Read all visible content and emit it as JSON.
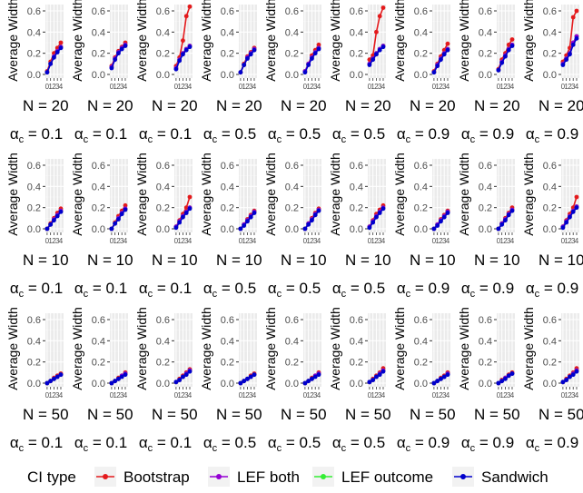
{
  "chart_data": {
    "type": "line",
    "description_layout": "3 rows x 9 facet panels",
    "ylabel": "Average Width",
    "y_ticks": [
      "0.0",
      "0.2",
      "0.4",
      "0.6"
    ],
    "x_ticks": [
      "0",
      "1",
      "2",
      "3",
      "4"
    ],
    "ylim": [
      0,
      0.68
    ],
    "xlim": [
      -0.5,
      4.8
    ],
    "legend_title": "CI type",
    "legend": [
      {
        "name": "Bootstrap",
        "color": "#e41a1c"
      },
      {
        "name": "LEF both",
        "color": "#9400d3"
      },
      {
        "name": "LEF outcome",
        "color": "#33ee33"
      },
      {
        "name": "Sandwich",
        "color": "#0000cc"
      }
    ],
    "alpha_symbol": "α",
    "alpha_sub": "c",
    "alpha_values": [
      "0.1",
      "0.1",
      "0.1",
      "0.5",
      "0.5",
      "0.5",
      "0.9",
      "0.9",
      "0.9"
    ],
    "row_labels": [
      "N = 20",
      "N = 10",
      "N = 50"
    ],
    "x": [
      0,
      1,
      2,
      3,
      4
    ],
    "rows": [
      {
        "panels": [
          {
            "Bootstrap": [
              0.03,
              0.12,
              0.2,
              0.25,
              0.3
            ],
            "LEF both": [
              0.02,
              0.1,
              0.17,
              0.22,
              0.26
            ],
            "LEF outcome": [
              0.02,
              0.1,
              0.17,
              0.22,
              0.26
            ],
            "Sandwich": [
              0.02,
              0.1,
              0.16,
              0.21,
              0.25
            ]
          },
          {
            "Bootstrap": [
              0.08,
              0.16,
              0.22,
              0.26,
              0.3
            ],
            "LEF both": [
              0.07,
              0.15,
              0.21,
              0.25,
              0.28
            ],
            "LEF outcome": [
              0.07,
              0.15,
              0.21,
              0.25,
              0.28
            ],
            "Sandwich": [
              0.06,
              0.14,
              0.2,
              0.24,
              0.27
            ]
          },
          {
            "Bootstrap": [
              0.08,
              0.16,
              0.32,
              0.55,
              0.64
            ],
            "LEF both": [
              0.06,
              0.14,
              0.2,
              0.24,
              0.27
            ],
            "LEF outcome": [
              0.06,
              0.14,
              0.2,
              0.24,
              0.27
            ],
            "Sandwich": [
              0.05,
              0.13,
              0.19,
              0.23,
              0.26
            ]
          },
          {
            "Bootstrap": [
              0.02,
              0.1,
              0.17,
              0.21,
              0.25
            ],
            "LEF both": [
              0.02,
              0.09,
              0.16,
              0.2,
              0.24
            ],
            "LEF outcome": [
              0.02,
              0.09,
              0.16,
              0.2,
              0.24
            ],
            "Sandwich": [
              0.02,
              0.09,
              0.15,
              0.19,
              0.23
            ]
          },
          {
            "Bootstrap": [
              0.03,
              0.1,
              0.18,
              0.23,
              0.28
            ],
            "LEF both": [
              0.03,
              0.1,
              0.16,
              0.21,
              0.25
            ],
            "LEF outcome": [
              0.03,
              0.1,
              0.16,
              0.21,
              0.25
            ],
            "Sandwich": [
              0.02,
              0.09,
              0.15,
              0.2,
              0.24
            ]
          },
          {
            "Bootstrap": [
              0.14,
              0.18,
              0.4,
              0.55,
              0.63
            ],
            "LEF both": [
              0.1,
              0.15,
              0.2,
              0.24,
              0.27
            ],
            "LEF outcome": [
              0.1,
              0.15,
              0.2,
              0.24,
              0.27
            ],
            "Sandwich": [
              0.09,
              0.14,
              0.19,
              0.23,
              0.26
            ]
          },
          {
            "Bootstrap": [
              0.03,
              0.1,
              0.17,
              0.23,
              0.29
            ],
            "LEF both": [
              0.02,
              0.09,
              0.15,
              0.2,
              0.24
            ],
            "LEF outcome": [
              0.02,
              0.09,
              0.15,
              0.2,
              0.24
            ],
            "Sandwich": [
              0.02,
              0.08,
              0.14,
              0.19,
              0.23
            ]
          },
          {
            "Bootstrap": [
              0.05,
              0.14,
              0.2,
              0.28,
              0.33
            ],
            "LEF both": [
              0.04,
              0.12,
              0.18,
              0.24,
              0.28
            ],
            "LEF outcome": [
              0.04,
              0.12,
              0.18,
              0.24,
              0.28
            ],
            "Sandwich": [
              0.04,
              0.11,
              0.17,
              0.23,
              0.27
            ]
          },
          {
            "Bootstrap": [
              0.12,
              0.18,
              0.25,
              0.54,
              0.6
            ],
            "LEF both": [
              0.1,
              0.15,
              0.2,
              0.3,
              0.36
            ],
            "LEF outcome": [
              0.1,
              0.15,
              0.2,
              0.3,
              0.36
            ],
            "Sandwich": [
              0.09,
              0.14,
              0.19,
              0.28,
              0.34
            ]
          }
        ]
      },
      {
        "panels": [
          {
            "Bootstrap": [
              0.0,
              0.05,
              0.1,
              0.15,
              0.19
            ],
            "LEF both": [
              0.0,
              0.04,
              0.09,
              0.13,
              0.17
            ],
            "LEF outcome": [
              0.0,
              0.04,
              0.09,
              0.13,
              0.17
            ],
            "Sandwich": [
              0.0,
              0.04,
              0.08,
              0.12,
              0.16
            ]
          },
          {
            "Bootstrap": [
              0.0,
              0.06,
              0.12,
              0.17,
              0.22
            ],
            "LEF both": [
              0.0,
              0.05,
              0.1,
              0.15,
              0.19
            ],
            "LEF outcome": [
              0.0,
              0.05,
              0.1,
              0.15,
              0.19
            ],
            "Sandwich": [
              0.0,
              0.05,
              0.09,
              0.14,
              0.18
            ]
          },
          {
            "Bootstrap": [
              0.02,
              0.08,
              0.14,
              0.2,
              0.3
            ],
            "LEF both": [
              0.02,
              0.07,
              0.12,
              0.16,
              0.2
            ],
            "LEF outcome": [
              0.02,
              0.07,
              0.12,
              0.16,
              0.2
            ],
            "Sandwich": [
              0.01,
              0.06,
              0.11,
              0.15,
              0.19
            ]
          },
          {
            "Bootstrap": [
              0.0,
              0.04,
              0.09,
              0.13,
              0.17
            ],
            "LEF both": [
              0.0,
              0.04,
              0.08,
              0.12,
              0.16
            ],
            "LEF outcome": [
              0.0,
              0.04,
              0.08,
              0.12,
              0.16
            ],
            "Sandwich": [
              0.0,
              0.03,
              0.07,
              0.11,
              0.15
            ]
          },
          {
            "Bootstrap": [
              0.0,
              0.05,
              0.1,
              0.15,
              0.19
            ],
            "LEF both": [
              0.0,
              0.05,
              0.09,
              0.14,
              0.18
            ],
            "LEF outcome": [
              0.0,
              0.05,
              0.09,
              0.14,
              0.18
            ],
            "Sandwich": [
              0.0,
              0.04,
              0.08,
              0.13,
              0.17
            ]
          },
          {
            "Bootstrap": [
              0.02,
              0.08,
              0.14,
              0.18,
              0.22
            ],
            "LEF both": [
              0.02,
              0.07,
              0.12,
              0.16,
              0.2
            ],
            "LEF outcome": [
              0.02,
              0.07,
              0.12,
              0.16,
              0.2
            ],
            "Sandwich": [
              0.01,
              0.06,
              0.11,
              0.15,
              0.19
            ]
          },
          {
            "Bootstrap": [
              0.0,
              0.04,
              0.09,
              0.13,
              0.17
            ],
            "LEF both": [
              0.0,
              0.04,
              0.08,
              0.12,
              0.16
            ],
            "LEF outcome": [
              0.0,
              0.04,
              0.08,
              0.12,
              0.16
            ],
            "Sandwich": [
              0.0,
              0.03,
              0.07,
              0.11,
              0.15
            ]
          },
          {
            "Bootstrap": [
              0.0,
              0.05,
              0.1,
              0.15,
              0.2
            ],
            "LEF both": [
              0.0,
              0.05,
              0.09,
              0.14,
              0.18
            ],
            "LEF outcome": [
              0.0,
              0.05,
              0.09,
              0.14,
              0.18
            ],
            "Sandwich": [
              0.0,
              0.04,
              0.08,
              0.13,
              0.17
            ]
          },
          {
            "Bootstrap": [
              0.02,
              0.08,
              0.14,
              0.2,
              0.3
            ],
            "LEF both": [
              0.02,
              0.07,
              0.12,
              0.17,
              0.21
            ],
            "LEF outcome": [
              0.02,
              0.07,
              0.12,
              0.17,
              0.21
            ],
            "Sandwich": [
              0.01,
              0.06,
              0.11,
              0.16,
              0.2
            ]
          }
        ]
      },
      {
        "panels": [
          {
            "Bootstrap": [
              0.0,
              0.02,
              0.05,
              0.07,
              0.09
            ],
            "LEF both": [
              0.0,
              0.02,
              0.04,
              0.06,
              0.08
            ],
            "LEF outcome": [
              0.0,
              0.02,
              0.04,
              0.06,
              0.08
            ],
            "Sandwich": [
              0.0,
              0.02,
              0.04,
              0.06,
              0.08
            ]
          },
          {
            "Bootstrap": [
              0.0,
              0.02,
              0.05,
              0.07,
              0.1
            ],
            "LEF both": [
              0.0,
              0.02,
              0.04,
              0.07,
              0.09
            ],
            "LEF outcome": [
              0.0,
              0.02,
              0.04,
              0.07,
              0.09
            ],
            "Sandwich": [
              0.0,
              0.02,
              0.04,
              0.06,
              0.08
            ]
          },
          {
            "Bootstrap": [
              0.01,
              0.04,
              0.07,
              0.1,
              0.13
            ],
            "LEF both": [
              0.01,
              0.03,
              0.06,
              0.09,
              0.12
            ],
            "LEF outcome": [
              0.01,
              0.03,
              0.06,
              0.09,
              0.12
            ],
            "Sandwich": [
              0.01,
              0.03,
              0.06,
              0.08,
              0.11
            ]
          },
          {
            "Bootstrap": [
              0.0,
              0.02,
              0.04,
              0.07,
              0.09
            ],
            "LEF both": [
              0.0,
              0.02,
              0.04,
              0.06,
              0.08
            ],
            "LEF outcome": [
              0.0,
              0.02,
              0.04,
              0.06,
              0.08
            ],
            "Sandwich": [
              0.0,
              0.02,
              0.04,
              0.06,
              0.08
            ]
          },
          {
            "Bootstrap": [
              0.0,
              0.02,
              0.05,
              0.07,
              0.1
            ],
            "LEF both": [
              0.0,
              0.02,
              0.04,
              0.07,
              0.09
            ],
            "LEF outcome": [
              0.0,
              0.02,
              0.04,
              0.07,
              0.09
            ],
            "Sandwich": [
              0.0,
              0.02,
              0.04,
              0.06,
              0.08
            ]
          },
          {
            "Bootstrap": [
              0.01,
              0.04,
              0.07,
              0.1,
              0.14
            ],
            "LEF both": [
              0.01,
              0.03,
              0.06,
              0.09,
              0.12
            ],
            "LEF outcome": [
              0.01,
              0.03,
              0.06,
              0.09,
              0.12
            ],
            "Sandwich": [
              0.01,
              0.03,
              0.06,
              0.08,
              0.11
            ]
          },
          {
            "Bootstrap": [
              0.0,
              0.02,
              0.05,
              0.07,
              0.1
            ],
            "LEF both": [
              0.0,
              0.02,
              0.04,
              0.06,
              0.09
            ],
            "LEF outcome": [
              0.0,
              0.02,
              0.04,
              0.06,
              0.09
            ],
            "Sandwich": [
              0.0,
              0.02,
              0.04,
              0.06,
              0.08
            ]
          },
          {
            "Bootstrap": [
              0.0,
              0.03,
              0.05,
              0.08,
              0.1
            ],
            "LEF both": [
              0.0,
              0.02,
              0.05,
              0.07,
              0.09
            ],
            "LEF outcome": [
              0.0,
              0.02,
              0.05,
              0.07,
              0.09
            ],
            "Sandwich": [
              0.0,
              0.02,
              0.04,
              0.07,
              0.09
            ]
          },
          {
            "Bootstrap": [
              0.01,
              0.04,
              0.07,
              0.1,
              0.14
            ],
            "LEF both": [
              0.01,
              0.03,
              0.06,
              0.09,
              0.12
            ],
            "LEF outcome": [
              0.01,
              0.03,
              0.06,
              0.09,
              0.12
            ],
            "Sandwich": [
              0.01,
              0.03,
              0.06,
              0.08,
              0.11
            ]
          }
        ]
      }
    ]
  }
}
